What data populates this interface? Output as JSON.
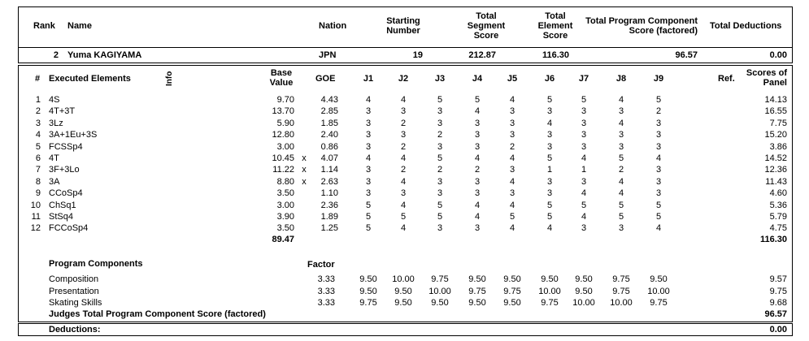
{
  "header": {
    "rank": "Rank",
    "name": "Name",
    "nation": "Nation",
    "starting_number": [
      "Starting",
      "Number"
    ],
    "total_segment_score": [
      "Total",
      "Segment",
      "Score"
    ],
    "total_element_score": [
      "Total",
      "Element",
      "Score"
    ],
    "total_pcs": [
      "Total Program Component",
      "Score (factored)"
    ],
    "total_deductions": "Total Deductions"
  },
  "skater": {
    "rank": "2",
    "name": "Yuma KAGIYAMA",
    "nation": "JPN",
    "starting_number": "19",
    "total_segment_score": "212.87",
    "total_element_score": "116.30",
    "total_pcs": "96.57",
    "total_deductions": "0.00"
  },
  "elements_header": {
    "num": "#",
    "executed": "Executed Elements",
    "info": "Info",
    "base_value": [
      "Base",
      "Value"
    ],
    "goe": "GOE",
    "judges": [
      "J1",
      "J2",
      "J3",
      "J4",
      "J5",
      "J6",
      "J7",
      "J8",
      "J9"
    ],
    "ref": "Ref.",
    "scores": [
      "Scores of",
      "Panel"
    ]
  },
  "elements": [
    {
      "n": "1",
      "el": "4S",
      "bv": "9.70",
      "x": "",
      "goe": "4.43",
      "j": [
        "4",
        "4",
        "5",
        "5",
        "4",
        "5",
        "5",
        "4",
        "5"
      ],
      "score": "14.13"
    },
    {
      "n": "2",
      "el": "4T+3T",
      "bv": "13.70",
      "x": "",
      "goe": "2.85",
      "j": [
        "3",
        "3",
        "3",
        "4",
        "3",
        "3",
        "3",
        "3",
        "2"
      ],
      "score": "16.55"
    },
    {
      "n": "3",
      "el": "3Lz",
      "bv": "5.90",
      "x": "",
      "goe": "1.85",
      "j": [
        "3",
        "2",
        "3",
        "3",
        "3",
        "4",
        "3",
        "4",
        "3"
      ],
      "score": "7.75"
    },
    {
      "n": "4",
      "el": "3A+1Eu+3S",
      "bv": "12.80",
      "x": "",
      "goe": "2.40",
      "j": [
        "3",
        "3",
        "2",
        "3",
        "3",
        "3",
        "3",
        "3",
        "3"
      ],
      "score": "15.20"
    },
    {
      "n": "5",
      "el": "FCSSp4",
      "bv": "3.00",
      "x": "",
      "goe": "0.86",
      "j": [
        "3",
        "2",
        "3",
        "3",
        "2",
        "3",
        "3",
        "3",
        "3"
      ],
      "score": "3.86"
    },
    {
      "n": "6",
      "el": "4T",
      "bv": "10.45",
      "x": "x",
      "goe": "4.07",
      "j": [
        "4",
        "4",
        "5",
        "4",
        "4",
        "5",
        "4",
        "5",
        "4"
      ],
      "score": "14.52"
    },
    {
      "n": "7",
      "el": "3F+3Lo",
      "bv": "11.22",
      "x": "x",
      "goe": "1.14",
      "j": [
        "3",
        "2",
        "2",
        "2",
        "3",
        "1",
        "1",
        "2",
        "3"
      ],
      "score": "12.36"
    },
    {
      "n": "8",
      "el": "3A",
      "bv": "8.80",
      "x": "x",
      "goe": "2.63",
      "j": [
        "3",
        "4",
        "3",
        "3",
        "4",
        "3",
        "3",
        "4",
        "3"
      ],
      "score": "11.43"
    },
    {
      "n": "9",
      "el": "CCoSp4",
      "bv": "3.50",
      "x": "",
      "goe": "1.10",
      "j": [
        "3",
        "3",
        "3",
        "3",
        "3",
        "3",
        "4",
        "4",
        "3"
      ],
      "score": "4.60"
    },
    {
      "n": "10",
      "el": "ChSq1",
      "bv": "3.00",
      "x": "",
      "goe": "2.36",
      "j": [
        "5",
        "4",
        "5",
        "4",
        "4",
        "5",
        "5",
        "5",
        "5"
      ],
      "score": "5.36"
    },
    {
      "n": "11",
      "el": "StSq4",
      "bv": "3.90",
      "x": "",
      "goe": "1.89",
      "j": [
        "5",
        "5",
        "5",
        "4",
        "5",
        "5",
        "4",
        "5",
        "5"
      ],
      "score": "5.79"
    },
    {
      "n": "12",
      "el": "FCCoSp4",
      "bv": "3.50",
      "x": "",
      "goe": "1.25",
      "j": [
        "5",
        "4",
        "3",
        "3",
        "4",
        "4",
        "3",
        "3",
        "4"
      ],
      "score": "4.75"
    }
  ],
  "base_value_total": "89.47",
  "elements_total": "116.30",
  "program_components": {
    "title": "Program Components",
    "factor_label": "Factor",
    "rows": [
      {
        "name": "Composition",
        "factor": "3.33",
        "j": [
          "9.50",
          "10.00",
          "9.75",
          "9.50",
          "9.50",
          "9.50",
          "9.50",
          "9.75",
          "9.50"
        ],
        "score": "9.57"
      },
      {
        "name": "Presentation",
        "factor": "3.33",
        "j": [
          "9.50",
          "9.50",
          "10.00",
          "9.75",
          "9.75",
          "10.00",
          "9.50",
          "9.75",
          "10.00"
        ],
        "score": "9.75"
      },
      {
        "name": "Skating Skills",
        "factor": "3.33",
        "j": [
          "9.75",
          "9.50",
          "9.50",
          "9.50",
          "9.50",
          "9.75",
          "10.00",
          "10.00",
          "9.75"
        ],
        "score": "9.68"
      }
    ],
    "total_label": "Judges Total Program Component Score (factored)",
    "total": "96.57"
  },
  "deductions": {
    "label": "Deductions:",
    "value": "0.00"
  }
}
